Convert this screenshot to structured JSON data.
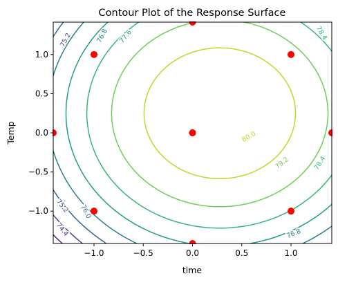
{
  "chart_data": {
    "type": "contour",
    "title": "Contour Plot of the Response Surface",
    "xlabel": "time",
    "ylabel": "Temp",
    "xlim": [
      -1.414,
      1.414
    ],
    "ylim": [
      -1.414,
      1.414
    ],
    "xticks": [
      -1.0,
      -0.5,
      0.0,
      0.5,
      1.0
    ],
    "xtick_labels": [
      "−1.0",
      "−0.5",
      "0.0",
      "0.5",
      "1.0"
    ],
    "yticks": [
      -1.0,
      -0.5,
      0.0,
      0.5,
      1.0
    ],
    "ytick_labels": [
      "−1.0",
      "−0.5",
      "0.0",
      "0.5",
      "1.0"
    ],
    "grid": false,
    "surface": {
      "intercept": 80.6,
      "b_time": 0.72,
      "b_temp": 0.55,
      "b_time_time": -1.3,
      "b_temp_temp": -1.1,
      "b_time_temp": 0.0
    },
    "levels": [
      74.4,
      75.2,
      76.0,
      76.8,
      77.6,
      78.4,
      79.2,
      80.0
    ],
    "level_colors": [
      "#482878",
      "#3e4989",
      "#31688e",
      "#26828e",
      "#1f9e89",
      "#35b779",
      "#6ece58",
      "#b5de2b"
    ],
    "contour_labels": [
      {
        "text": "74.4",
        "level": 74.4
      },
      {
        "text": "75.2",
        "level": 75.2
      },
      {
        "text": "75.2",
        "level": 75.2
      },
      {
        "text": "76.0",
        "level": 76.0
      },
      {
        "text": "76.8",
        "level": 76.8
      },
      {
        "text": "76.8",
        "level": 76.8
      },
      {
        "text": "77.6",
        "level": 77.6
      },
      {
        "text": "78.4",
        "level": 78.4
      },
      {
        "text": "78.4",
        "level": 78.4
      },
      {
        "text": "79.2",
        "level": 79.2
      },
      {
        "text": "80.0",
        "level": 80.0
      }
    ],
    "design_points": {
      "color": "#ff0000",
      "x": [
        -1,
        1,
        -1,
        1,
        -1.414,
        1.414,
        0,
        0,
        0,
        0
      ],
      "y": [
        -1,
        -1,
        1,
        1,
        0,
        0,
        -1.414,
        1.414,
        0,
        0
      ]
    }
  }
}
